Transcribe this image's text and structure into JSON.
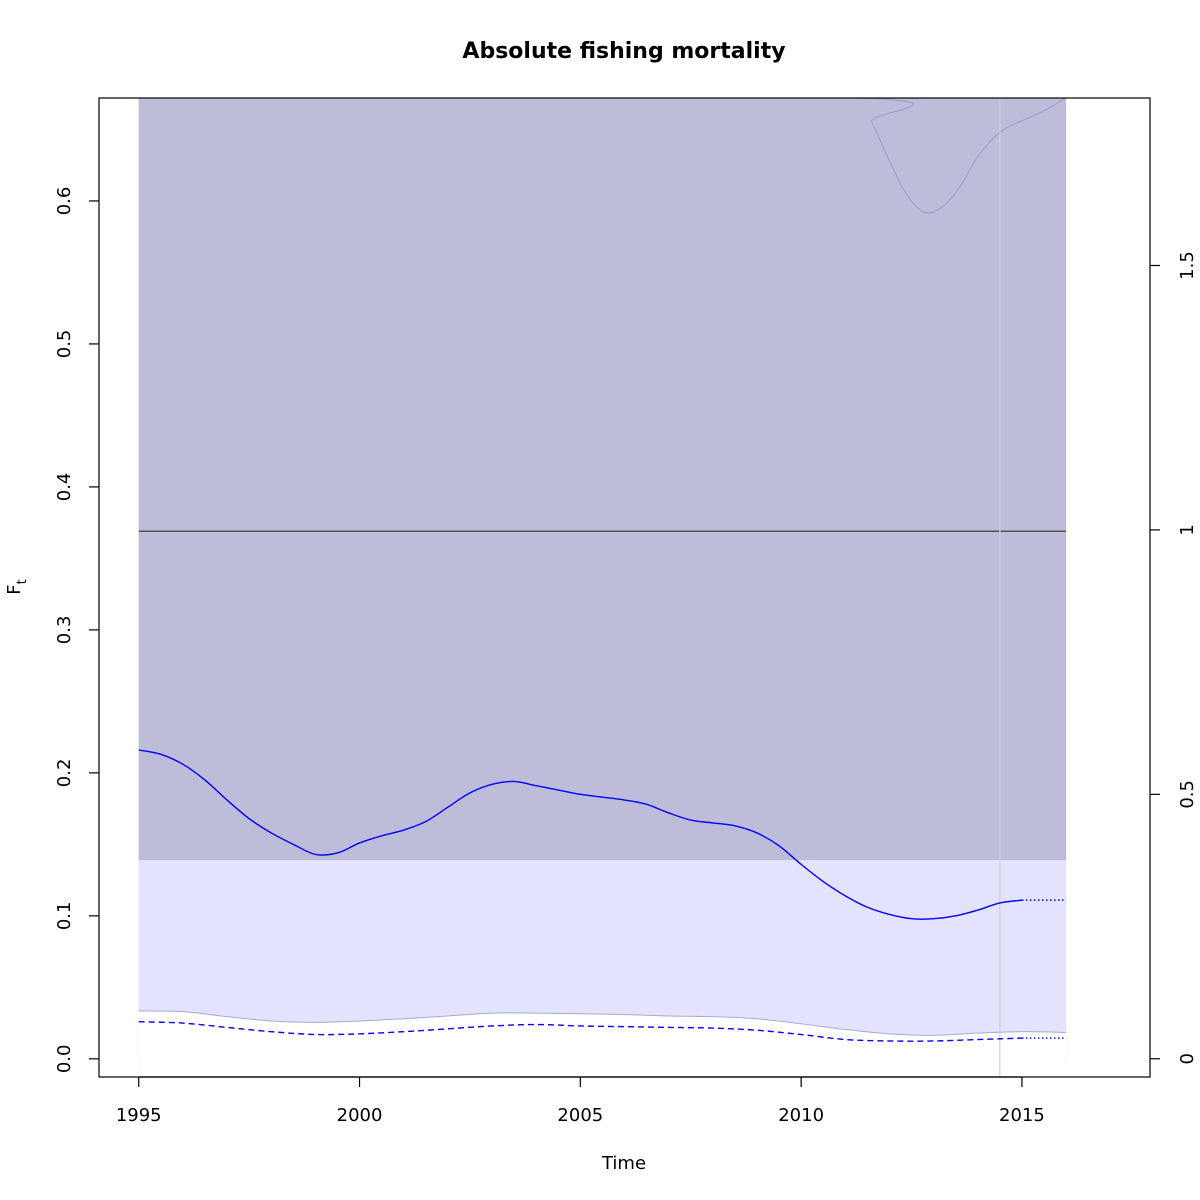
{
  "chart_data": {
    "type": "line",
    "title": "Absolute fishing mortality",
    "xlabel": "Time",
    "ylabel": "F",
    "ylabel_subscript": "t",
    "xlim": [
      1994.1,
      2017.9
    ],
    "ylim": [
      -0.0127,
      0.672
    ],
    "y2lim": [
      -0.0345,
      1.8167
    ],
    "x_ticks": [
      1995,
      2000,
      2005,
      2010,
      2015
    ],
    "y_ticks": [
      0.0,
      0.1,
      0.2,
      0.3,
      0.4,
      0.5,
      0.6
    ],
    "y_tick_labels": [
      "0.0",
      "0.1",
      "0.2",
      "0.3",
      "0.4",
      "0.5",
      "0.6"
    ],
    "y2_ticks": [
      0,
      0.5,
      1,
      1.5
    ],
    "y2_tick_labels": [
      "0",
      "0.5",
      "1",
      "1.5"
    ],
    "grid": false,
    "bands": [
      {
        "name": "fmsy-ci-lower",
        "x_range": [
          1995,
          2016
        ],
        "y_range": [
          0.0,
          0.139
        ],
        "color": "#e3e3fd"
      },
      {
        "name": "fmsy-ci-upper",
        "x_range": [
          1995,
          2016
        ],
        "y_range": [
          0.139,
          0.672
        ],
        "color": "#bdbdd9"
      }
    ],
    "fmsy_line": {
      "y": 0.369,
      "x_range": [
        1995,
        2016
      ],
      "color": "#555555"
    },
    "vline": {
      "x": 2014.5,
      "color": "#d0d0d0"
    },
    "ci_upper_top": {
      "x": [
        1995,
        2011.25,
        2011.6,
        2012.0,
        2012.4,
        2012.8,
        2013.2,
        2013.6,
        2014.0,
        2014.5,
        2015.0,
        2015.5,
        2016.0
      ],
      "y": [
        0.672,
        0.672,
        0.655,
        0.628,
        0.604,
        0.592,
        0.596,
        0.61,
        0.631,
        0.648,
        0.656,
        0.663,
        0.672
      ],
      "color": "#d3d3d3"
    },
    "ci_lower": {
      "x": [
        1995,
        1996,
        1997,
        1998,
        1999,
        2000,
        2001,
        2002,
        2003,
        2004,
        2005,
        2006,
        2007,
        2008,
        2009,
        2010,
        2011,
        2012,
        2013,
        2014,
        2015,
        2016
      ],
      "y": [
        0.0335,
        0.033,
        0.0295,
        0.0265,
        0.0255,
        0.0265,
        0.028,
        0.03,
        0.032,
        0.032,
        0.0315,
        0.031,
        0.03,
        0.0295,
        0.028,
        0.0245,
        0.0205,
        0.0175,
        0.0165,
        0.018,
        0.019,
        0.0185
      ]
    },
    "series": [
      {
        "name": "F",
        "style": "solid",
        "color": "#0000ff",
        "x": [
          1995,
          1995.5,
          1996,
          1996.5,
          1997,
          1997.5,
          1998,
          1998.5,
          1999,
          1999.5,
          2000,
          2000.5,
          2001,
          2001.5,
          2002,
          2002.5,
          2003,
          2003.5,
          2004,
          2004.5,
          2005,
          2005.5,
          2006,
          2006.5,
          2007,
          2007.5,
          2008,
          2008.5,
          2009,
          2009.5,
          2010,
          2010.5,
          2011,
          2011.5,
          2012,
          2012.5,
          2013,
          2013.5,
          2014,
          2014.5,
          2015
        ],
        "y": [
          0.216,
          0.213,
          0.206,
          0.195,
          0.181,
          0.168,
          0.158,
          0.15,
          0.143,
          0.144,
          0.151,
          0.156,
          0.16,
          0.166,
          0.176,
          0.186,
          0.192,
          0.194,
          0.191,
          0.188,
          0.185,
          0.183,
          0.181,
          0.178,
          0.172,
          0.167,
          0.165,
          0.163,
          0.158,
          0.149,
          0.136,
          0.124,
          0.114,
          0.106,
          0.101,
          0.098,
          0.098,
          0.1,
          0.104,
          0.109,
          0.111
        ]
      },
      {
        "name": "F-predicted",
        "style": "dotted",
        "color": "#0000ff",
        "x": [
          2015,
          2016
        ],
        "y": [
          0.111,
          0.111
        ]
      },
      {
        "name": "F-relative",
        "style": "dashed",
        "color": "#0000ff",
        "x": [
          1995,
          1996,
          1997,
          1998,
          1999,
          2000,
          2001,
          2002,
          2003,
          2004,
          2005,
          2006,
          2007,
          2008,
          2009,
          2010,
          2011,
          2012,
          2013,
          2014,
          2015
        ],
        "y": [
          0.026,
          0.025,
          0.022,
          0.019,
          0.017,
          0.0175,
          0.019,
          0.021,
          0.023,
          0.024,
          0.023,
          0.0225,
          0.022,
          0.0215,
          0.02,
          0.017,
          0.0135,
          0.0125,
          0.0125,
          0.0135,
          0.0145
        ]
      },
      {
        "name": "F-relative-predicted",
        "style": "dotted",
        "color": "#0000ff",
        "x": [
          2015,
          2016
        ],
        "y": [
          0.0145,
          0.0145
        ]
      }
    ]
  }
}
